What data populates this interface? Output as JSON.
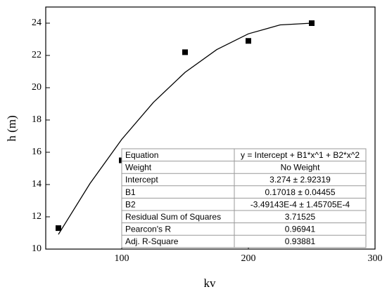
{
  "chart_data": {
    "type": "scatter",
    "x_label": "kv",
    "y_label": "h (m)",
    "xlim": [
      40,
      300
    ],
    "xticks": [
      100,
      200,
      300
    ],
    "ylim": [
      10,
      25
    ],
    "yticks": [
      10,
      12,
      14,
      16,
      18,
      20,
      22,
      24
    ],
    "series": [
      {
        "name": "h",
        "color": "#000000",
        "x": [
          50,
          100,
          150,
          200,
          250
        ],
        "values": [
          11.3,
          15.5,
          22.2,
          22.9,
          24.0
        ]
      },
      {
        "name": "Fit",
        "color": "#000000",
        "x": [
          50,
          75,
          100,
          125,
          150,
          175,
          200,
          225,
          250
        ],
        "values": [
          10.91,
          14.07,
          16.8,
          19.09,
          20.95,
          22.36,
          23.34,
          23.89,
          24.0
        ]
      }
    ],
    "table": [
      [
        "Equation",
        "y = Intercept + B1*x^1 + B2*x^2"
      ],
      [
        "Weight",
        "No Weight"
      ],
      [
        "Intercept",
        "3.274 ± 2.92319"
      ],
      [
        "B1",
        "0.17018 ± 0.04455"
      ],
      [
        "B2",
        "-3.49143E-4 ± 1.45705E-4"
      ],
      [
        "Residual Sum of Squares",
        "3.71525"
      ],
      [
        "Pearcon's R",
        "0.96941"
      ],
      [
        "Adj. R-Square",
        "0.93881"
      ]
    ]
  }
}
